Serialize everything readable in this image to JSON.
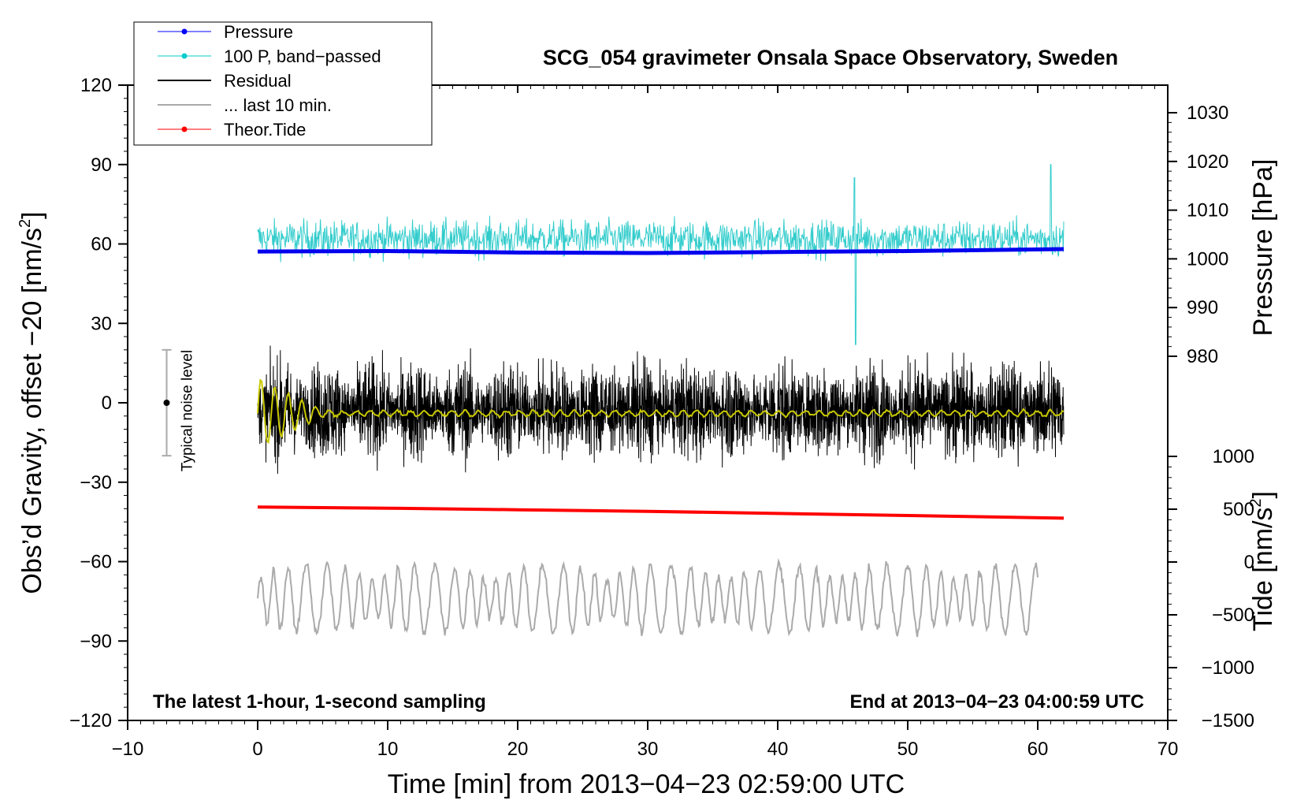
{
  "chart_data": {
    "type": "line",
    "title": "SCG_054 gravimeter Onsala Space Observatory, Sweden",
    "xlabel": "Time [min] from 2013−04−23 02:59:00 UTC",
    "ylabel_left_main": "Obs’d Gravity, offset −20 [nm/s",
    "ylabel_left_sup": "2",
    "ylabel_left_end": "]",
    "ylabel_right_pressure": "Pressure [hPa]",
    "ylabel_right_tide_main": "Tide [nm/s",
    "ylabel_right_tide_sup": "2",
    "ylabel_right_tide_end": "]",
    "xlim": [
      -10,
      70
    ],
    "ylim_left": [
      -120,
      120
    ],
    "ylim_pressure": [
      975,
      1035
    ],
    "ylim_tide": [
      -1500,
      1000
    ],
    "x_ticks": [
      -10,
      0,
      10,
      20,
      30,
      40,
      50,
      60,
      70
    ],
    "x_tick_labels": [
      "−10",
      "0",
      "10",
      "20",
      "30",
      "40",
      "50",
      "60",
      "70"
    ],
    "y_left_ticks": [
      120,
      90,
      60,
      30,
      0,
      -30,
      -60,
      -90,
      -120
    ],
    "y_left_tick_labels": [
      "120",
      "90",
      "60",
      "30",
      "0",
      "−30",
      "−60",
      "−90",
      "−120"
    ],
    "pressure_ticks": [
      1030,
      1020,
      1010,
      1000,
      990,
      980
    ],
    "pressure_tick_labels": [
      "1030",
      "1020",
      "1010",
      "1000",
      "990",
      "980"
    ],
    "tide_ticks": [
      1000,
      500,
      0,
      -500,
      -1000,
      -1500
    ],
    "tide_tick_labels": [
      "1000",
      "500",
      "0",
      "−500",
      "−1000",
      "−1500"
    ],
    "annotation_left": "The latest 1-hour, 1-second sampling",
    "annotation_right": "End at 2013−04−23 04:00:59 UTC",
    "noise_bar": {
      "label": "Typical noise level",
      "x": -7,
      "center": 0,
      "half_range": 20
    },
    "legend": [
      {
        "label": "Pressure",
        "color": "#0000ff",
        "marker": "dot"
      },
      {
        "label": "100 P, band−passed",
        "color": "#00cccc",
        "marker": "dot"
      },
      {
        "label": "Residual",
        "color": "#000000",
        "marker": "none"
      },
      {
        "label": "... last 10 min.",
        "color": "#aaaaaa",
        "marker": "none"
      },
      {
        "label": "Theor.Tide",
        "color": "#ff0000",
        "marker": "dot"
      }
    ],
    "series": [
      {
        "name": "Pressure",
        "axis": "pressure",
        "color": "#0000ee",
        "x": [
          0,
          10,
          20,
          30,
          40,
          50,
          62
        ],
        "y": [
          1001.5,
          1001.6,
          1001.3,
          1001.2,
          1001.4,
          1001.6,
          1002.0
        ]
      },
      {
        "name": "100 P, band−passed",
        "axis": "left",
        "color": "#33cccc",
        "noise": true,
        "x_range": [
          0,
          62
        ],
        "center": 62,
        "amplitude": 7
      },
      {
        "name": "Residual",
        "axis": "left",
        "color": "#000000",
        "noise": true,
        "x_range": [
          0,
          62
        ],
        "center": -3,
        "amplitude": 15
      },
      {
        "name": "Residual (smoothed)",
        "axis": "left",
        "color": "#c8c800",
        "x_range": [
          0,
          62
        ],
        "center": -4,
        "amplitude": 1
      },
      {
        "name": "... last 10 min.",
        "axis": "left",
        "color": "#aaaaaa",
        "noise": true,
        "x_range": [
          0,
          60
        ],
        "center": -74,
        "amplitude": 12
      },
      {
        "name": "Theor.Tide",
        "axis": "tide",
        "color": "#ff0000",
        "x": [
          0,
          10,
          20,
          30,
          40,
          50,
          62
        ],
        "y": [
          520,
          510,
          495,
          480,
          460,
          440,
          415
        ]
      }
    ]
  }
}
